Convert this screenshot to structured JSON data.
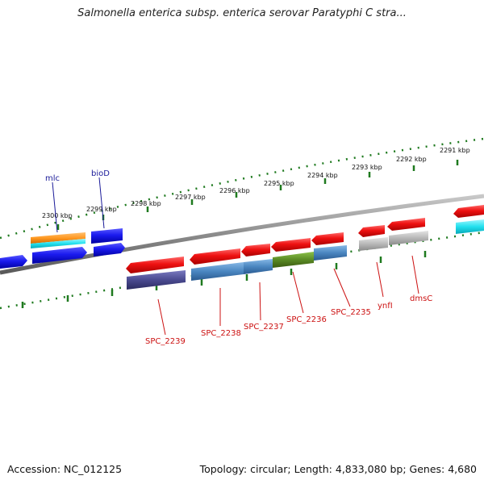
{
  "title": "Salmonella enterica subsp. enterica serovar Paratyphi C stra...",
  "footer": {
    "accession": "Accession: NC_012125",
    "summary": "Topology: circular; Length: 4,833,080 bp; Genes: 4,680"
  },
  "ticks": {
    "outer": [
      "2300 kbp",
      "2299 kbp",
      "2298 kbp",
      "2297 kbp",
      "2296 kbp",
      "2295 kbp",
      "2294 kbp",
      "2293 kbp",
      "2292 kbp",
      "2291 kbp"
    ]
  },
  "gene_labels": {
    "top": [
      "mlc",
      "bioD"
    ],
    "bottom": [
      "SPC_2239",
      "SPC_2238",
      "SPC_2237",
      "SPC_2236",
      "SPC_2235",
      "ynfI",
      "dmsC"
    ]
  },
  "colors": {
    "forward": "#ee1111",
    "reverse": "#1a1aee",
    "cyan": "#22e0ee",
    "orange": "#ff9922",
    "slateblue": "#4a4a90",
    "steelblue": "#4a86c0",
    "olive": "#5a8a24",
    "gray": "#b8b8b8",
    "backbone": "#8c8c8c",
    "tick": "#1f7a1f",
    "label_top": "#1a1a99",
    "label_bottom": "#cc1111"
  }
}
